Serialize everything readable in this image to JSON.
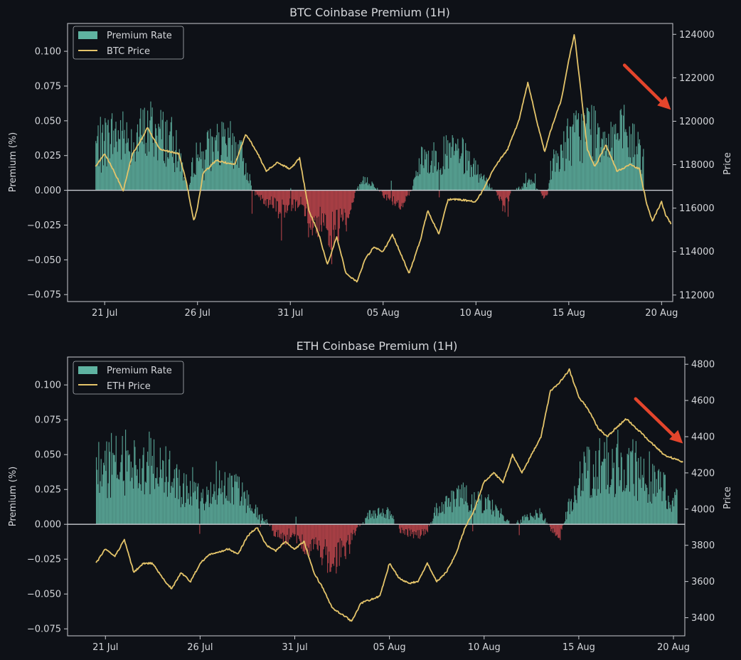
{
  "colors": {
    "background": "#0e1117",
    "axis": "#c9ccd1",
    "text": "#d4d6da",
    "positive": "#5fb3a1",
    "negative": "#c0474c",
    "price": "#e4c46a",
    "arrow": "#e4452c"
  },
  "chart_data": [
    {
      "type": "bar+line",
      "title": "BTC Coinbase Premium (1H)",
      "ylabel": "Premium (%)",
      "y2label": "Price",
      "ylim": [
        -0.08,
        0.12
      ],
      "y2lim": [
        111700,
        124500
      ],
      "yticks": [
        "0.100",
        "0.075",
        "0.050",
        "0.025",
        "0.000",
        "−0.025",
        "−0.050",
        "−0.075"
      ],
      "ytick_values": [
        0.1,
        0.075,
        0.05,
        0.025,
        0.0,
        -0.025,
        -0.05,
        -0.075
      ],
      "y2ticks": [
        "124000",
        "122000",
        "120000",
        "118000",
        "116000",
        "114000",
        "112000"
      ],
      "y2tick_values": [
        124000,
        122000,
        120000,
        118000,
        116000,
        114000,
        112000
      ],
      "xticks": [
        "21 Jul",
        "26 Jul",
        "31 Jul",
        "05 Aug",
        "10 Aug",
        "15 Aug",
        "20 Aug"
      ],
      "xtick_days": [
        21,
        26,
        31,
        36,
        41,
        46,
        51
      ],
      "xlim_days": [
        19.0,
        51.6
      ],
      "legend": [
        "Premium Rate",
        "BTC Price"
      ],
      "legend_position": "top-left",
      "premium_keyframes": [
        [
          20.5,
          0.04
        ],
        [
          21.5,
          0.05
        ],
        [
          22.5,
          0.045
        ],
        [
          23.5,
          0.055
        ],
        [
          24.5,
          0.045
        ],
        [
          25.0,
          0.03
        ],
        [
          25.5,
          0.0
        ],
        [
          25.8,
          0.03
        ],
        [
          27.0,
          0.04
        ],
        [
          28.0,
          0.04
        ],
        [
          28.5,
          0.025
        ],
        [
          29.0,
          0.0
        ],
        [
          29.5,
          -0.008
        ],
        [
          30.5,
          -0.018
        ],
        [
          31.5,
          -0.012
        ],
        [
          32.0,
          -0.025
        ],
        [
          33.0,
          -0.04
        ],
        [
          34.0,
          -0.03
        ],
        [
          34.5,
          0.0
        ],
        [
          35.0,
          0.01
        ],
        [
          35.5,
          0.005
        ],
        [
          36.0,
          -0.005
        ],
        [
          37.0,
          -0.012
        ],
        [
          37.5,
          0.0
        ],
        [
          38.0,
          0.025
        ],
        [
          40.0,
          0.035
        ],
        [
          41.5,
          0.008
        ],
        [
          42.0,
          0.0
        ],
        [
          42.5,
          -0.015
        ],
        [
          43.0,
          0.0
        ],
        [
          44.0,
          0.008
        ],
        [
          44.8,
          -0.01
        ],
        [
          45.0,
          0.02
        ],
        [
          46.0,
          0.045
        ],
        [
          47.0,
          0.055
        ],
        [
          48.5,
          0.05
        ],
        [
          49.5,
          0.04
        ],
        [
          50.0,
          0.03
        ]
      ],
      "price_keyframes": [
        [
          20.5,
          117900
        ],
        [
          21.0,
          118500
        ],
        [
          21.5,
          117700
        ],
        [
          22.0,
          116800
        ],
        [
          22.5,
          118500
        ],
        [
          23.0,
          119200
        ],
        [
          23.3,
          119700
        ],
        [
          24.0,
          118700
        ],
        [
          25.0,
          118500
        ],
        [
          25.4,
          117200
        ],
        [
          25.8,
          115400
        ],
        [
          26.0,
          116000
        ],
        [
          26.3,
          117600
        ],
        [
          27.0,
          118200
        ],
        [
          28.0,
          118000
        ],
        [
          28.6,
          119400
        ],
        [
          29.2,
          118600
        ],
        [
          29.7,
          117700
        ],
        [
          30.3,
          118100
        ],
        [
          31.0,
          117800
        ],
        [
          31.5,
          118300
        ],
        [
          32.0,
          115900
        ],
        [
          32.5,
          114900
        ],
        [
          33.0,
          113400
        ],
        [
          33.5,
          114700
        ],
        [
          34.0,
          113000
        ],
        [
          34.6,
          112600
        ],
        [
          35.0,
          113600
        ],
        [
          35.5,
          114200
        ],
        [
          36.0,
          114000
        ],
        [
          36.5,
          114800
        ],
        [
          37.0,
          113800
        ],
        [
          37.4,
          113000
        ],
        [
          38.0,
          114500
        ],
        [
          38.4,
          115900
        ],
        [
          39.0,
          114800
        ],
        [
          39.5,
          116400
        ],
        [
          40.0,
          116400
        ],
        [
          41.0,
          116300
        ],
        [
          41.5,
          117000
        ],
        [
          42.0,
          117900
        ],
        [
          42.7,
          118700
        ],
        [
          43.3,
          120000
        ],
        [
          43.8,
          121800
        ],
        [
          44.3,
          119900
        ],
        [
          44.7,
          118600
        ],
        [
          45.0,
          119500
        ],
        [
          45.6,
          121000
        ],
        [
          46.0,
          122800
        ],
        [
          46.3,
          124000
        ],
        [
          46.6,
          121800
        ],
        [
          47.0,
          118700
        ],
        [
          47.4,
          117900
        ],
        [
          48.0,
          118900
        ],
        [
          48.6,
          117700
        ],
        [
          49.3,
          118000
        ],
        [
          49.8,
          117800
        ],
        [
          50.2,
          116200
        ],
        [
          50.5,
          115400
        ],
        [
          51.0,
          116300
        ],
        [
          51.2,
          115700
        ],
        [
          51.5,
          115300
        ]
      ],
      "arrow": {
        "from_day": 49.0,
        "from_value": 0.09,
        "to_day": 51.5,
        "to_value": 0.058
      }
    },
    {
      "type": "bar+line",
      "title": "ETH Coinbase Premium (1H)",
      "ylabel": "Premium (%)",
      "y2label": "Price",
      "ylim": [
        -0.08,
        0.12
      ],
      "y2lim": [
        3300,
        4840
      ],
      "yticks": [
        "0.100",
        "0.075",
        "0.050",
        "0.025",
        "0.000",
        "−0.025",
        "−0.050",
        "−0.075"
      ],
      "ytick_values": [
        0.1,
        0.075,
        0.05,
        0.025,
        0.0,
        -0.025,
        -0.05,
        -0.075
      ],
      "y2ticks": [
        "4800",
        "4600",
        "4400",
        "4200",
        "4000",
        "3800",
        "3600",
        "3400"
      ],
      "y2tick_values": [
        4800,
        4600,
        4400,
        4200,
        4000,
        3800,
        3600,
        3400
      ],
      "xticks": [
        "21 Jul",
        "26 Jul",
        "31 Jul",
        "05 Aug",
        "10 Aug",
        "15 Aug",
        "20 Aug"
      ],
      "xtick_days": [
        21,
        26,
        31,
        36,
        41,
        46,
        51
      ],
      "xlim_days": [
        19.0,
        51.6
      ],
      "legend": [
        "Premium Rate",
        "ETH Price"
      ],
      "legend_position": "top-left",
      "premium_keyframes": [
        [
          20.5,
          0.05
        ],
        [
          22.0,
          0.055
        ],
        [
          23.5,
          0.055
        ],
        [
          24.0,
          0.05
        ],
        [
          25.0,
          0.03
        ],
        [
          26.0,
          0.025
        ],
        [
          27.0,
          0.04
        ],
        [
          28.0,
          0.03
        ],
        [
          29.0,
          0.01
        ],
        [
          29.5,
          0.003
        ],
        [
          30.0,
          -0.01
        ],
        [
          31.0,
          -0.015
        ],
        [
          32.0,
          -0.02
        ],
        [
          33.0,
          -0.035
        ],
        [
          33.5,
          -0.025
        ],
        [
          34.0,
          -0.01
        ],
        [
          34.5,
          0.0
        ],
        [
          35.0,
          0.01
        ],
        [
          36.0,
          0.01
        ],
        [
          36.5,
          -0.005
        ],
        [
          37.5,
          -0.01
        ],
        [
          38.0,
          -0.005
        ],
        [
          38.5,
          0.015
        ],
        [
          40.0,
          0.025
        ],
        [
          41.5,
          0.015
        ],
        [
          42.5,
          0.0
        ],
        [
          43.0,
          0.005
        ],
        [
          44.0,
          0.01
        ],
        [
          44.5,
          -0.005
        ],
        [
          45.0,
          -0.01
        ],
        [
          45.5,
          0.02
        ],
        [
          46.5,
          0.05
        ],
        [
          48.0,
          0.055
        ],
        [
          49.5,
          0.045
        ],
        [
          50.5,
          0.03
        ],
        [
          51.2,
          0.02
        ]
      ],
      "price_keyframes": [
        [
          20.5,
          3700
        ],
        [
          21.0,
          3780
        ],
        [
          21.5,
          3740
        ],
        [
          22.0,
          3830
        ],
        [
          22.5,
          3650
        ],
        [
          23.0,
          3700
        ],
        [
          23.5,
          3700
        ],
        [
          24.0,
          3620
        ],
        [
          24.5,
          3560
        ],
        [
          25.0,
          3650
        ],
        [
          25.5,
          3600
        ],
        [
          26.0,
          3700
        ],
        [
          26.5,
          3750
        ],
        [
          27.0,
          3760
        ],
        [
          27.5,
          3780
        ],
        [
          28.0,
          3750
        ],
        [
          28.5,
          3850
        ],
        [
          29.0,
          3900
        ],
        [
          29.5,
          3800
        ],
        [
          30.0,
          3770
        ],
        [
          30.5,
          3820
        ],
        [
          31.0,
          3780
        ],
        [
          31.5,
          3820
        ],
        [
          32.0,
          3650
        ],
        [
          32.5,
          3560
        ],
        [
          33.0,
          3450
        ],
        [
          33.5,
          3420
        ],
        [
          34.0,
          3380
        ],
        [
          34.5,
          3480
        ],
        [
          35.0,
          3500
        ],
        [
          35.5,
          3520
        ],
        [
          36.0,
          3700
        ],
        [
          36.5,
          3620
        ],
        [
          37.0,
          3590
        ],
        [
          37.5,
          3600
        ],
        [
          38.0,
          3700
        ],
        [
          38.5,
          3600
        ],
        [
          39.0,
          3650
        ],
        [
          39.5,
          3750
        ],
        [
          40.0,
          3900
        ],
        [
          40.5,
          4000
        ],
        [
          41.0,
          4150
        ],
        [
          41.5,
          4200
        ],
        [
          42.0,
          4150
        ],
        [
          42.5,
          4300
        ],
        [
          43.0,
          4200
        ],
        [
          43.5,
          4300
        ],
        [
          44.0,
          4400
        ],
        [
          44.5,
          4650
        ],
        [
          45.0,
          4700
        ],
        [
          45.5,
          4770
        ],
        [
          46.0,
          4620
        ],
        [
          46.5,
          4550
        ],
        [
          47.0,
          4450
        ],
        [
          47.5,
          4400
        ],
        [
          48.0,
          4450
        ],
        [
          48.5,
          4500
        ],
        [
          49.0,
          4450
        ],
        [
          49.5,
          4400
        ],
        [
          50.0,
          4350
        ],
        [
          50.5,
          4300
        ],
        [
          51.0,
          4280
        ],
        [
          51.5,
          4260
        ]
      ],
      "arrow": {
        "from_day": 49.0,
        "from_value": 0.09,
        "to_day": 51.5,
        "to_value": 0.058
      }
    }
  ]
}
